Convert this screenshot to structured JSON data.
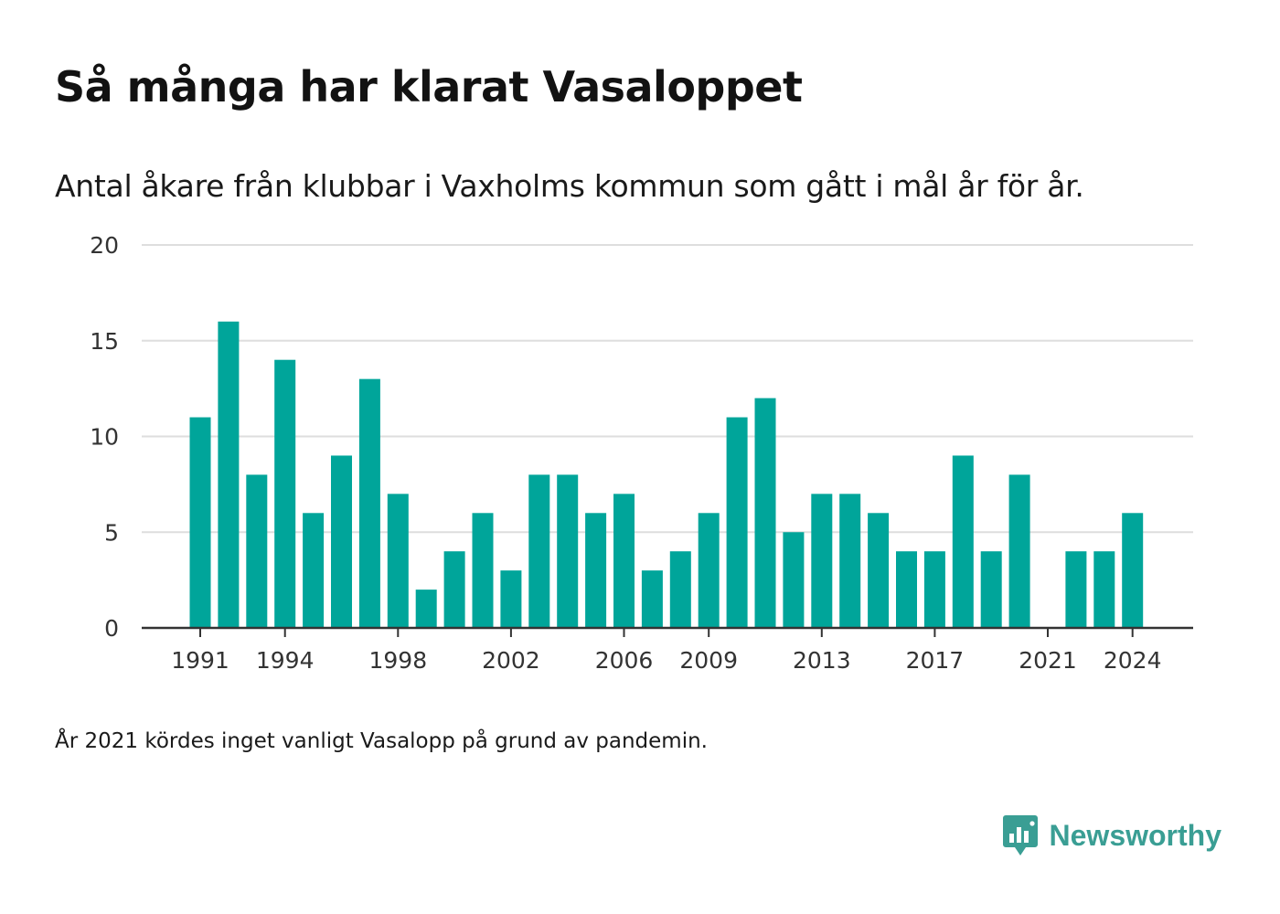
{
  "title": "Så många har klarat Vasaloppet",
  "subtitle": "Antal åkare från klubbar i Vaxholms kommun som gått i mål år för år.",
  "note": "År 2021 kördes inget vanligt Vasalopp på grund av pandemin.",
  "brand": {
    "name": "Newsworthy",
    "icon": "newsworthy-logo-icon",
    "color": "#3a9e94"
  },
  "colors": {
    "bar": "#00a59a",
    "grid": "#dedede",
    "axis": "#333333"
  },
  "chart_data": {
    "type": "bar",
    "title": "Så många har klarat Vasaloppet",
    "subtitle": "Antal åkare från klubbar i Vaxholms kommun som gått i mål år för år.",
    "categories": [
      1991,
      1992,
      1993,
      1994,
      1995,
      1996,
      1997,
      1998,
      1999,
      2000,
      2001,
      2002,
      2003,
      2004,
      2005,
      2006,
      2007,
      2008,
      2009,
      2010,
      2011,
      2012,
      2013,
      2014,
      2015,
      2016,
      2017,
      2018,
      2019,
      2020,
      2021,
      2022,
      2023,
      2024
    ],
    "values": [
      11,
      16,
      8,
      14,
      6,
      9,
      13,
      7,
      2,
      4,
      6,
      3,
      8,
      8,
      6,
      7,
      3,
      4,
      6,
      11,
      12,
      5,
      7,
      7,
      6,
      4,
      4,
      9,
      4,
      8,
      0,
      4,
      4,
      6
    ],
    "x_tick_labels": [
      "1991",
      "1994",
      "1998",
      "2002",
      "2006",
      "2009",
      "2013",
      "2017",
      "2021",
      "2024"
    ],
    "y_tick_labels": [
      "0",
      "5",
      "10",
      "15",
      "20"
    ],
    "ylim": [
      0,
      20
    ],
    "xlabel": "",
    "ylabel": "",
    "grid": true,
    "legend": "none"
  }
}
